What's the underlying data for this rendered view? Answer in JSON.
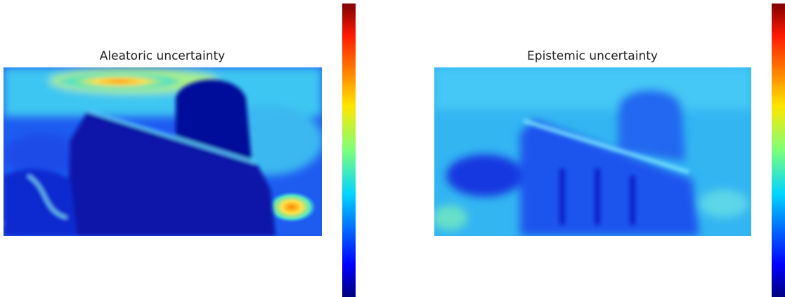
{
  "panels": [
    {
      "title": "Aleatoric uncertainty"
    },
    {
      "title": "Epistemic uncertainty"
    }
  ]
}
